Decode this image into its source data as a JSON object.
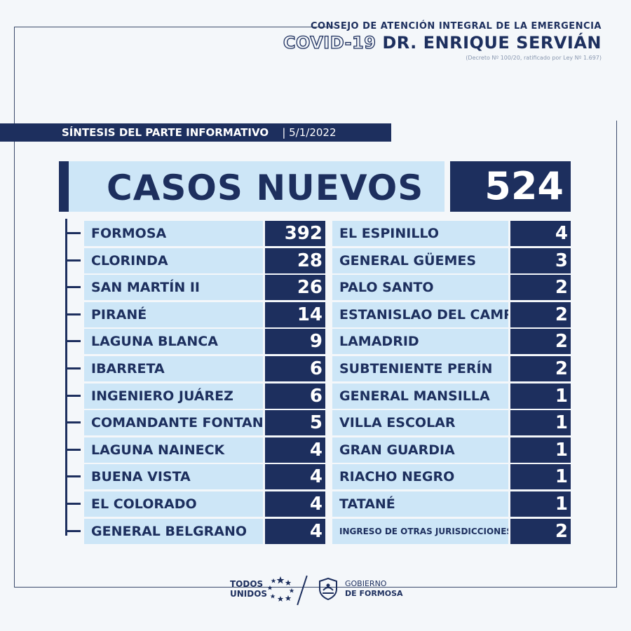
{
  "header": {
    "line1": "CONSEJO DE ATENCIÓN INTEGRAL DE LA EMERGENCIA",
    "covid": "COVID-19",
    "doctor": "DR. ENRIQUE SERVIÁN",
    "decree": "(Decreto Nº 100/20, ratificado por Ley Nº 1.697)"
  },
  "banner": {
    "title": "SÍNTESIS DEL PARTE INFORMATIVO",
    "date": "| 5/1/2022"
  },
  "summary": {
    "label": "CASOS NUEVOS",
    "total": "524"
  },
  "left_rows": [
    {
      "name": "FORMOSA",
      "count": "392"
    },
    {
      "name": "CLORINDA",
      "count": "28"
    },
    {
      "name": "SAN MARTÍN II",
      "count": "26"
    },
    {
      "name": "PIRANÉ",
      "count": "14"
    },
    {
      "name": "LAGUNA BLANCA",
      "count": "9"
    },
    {
      "name": "IBARRETA",
      "count": "6"
    },
    {
      "name": "INGENIERO JUÁREZ",
      "count": "6"
    },
    {
      "name": "COMANDANTE FONTANA",
      "count": "5"
    },
    {
      "name": "LAGUNA NAINECK",
      "count": "4"
    },
    {
      "name": "BUENA VISTA",
      "count": "4"
    },
    {
      "name": "EL COLORADO",
      "count": "4"
    },
    {
      "name": "GENERAL BELGRANO",
      "count": "4"
    }
  ],
  "right_rows": [
    {
      "name": "EL ESPINILLO",
      "count": "4"
    },
    {
      "name": "GENERAL GÜEMES",
      "count": "3"
    },
    {
      "name": "PALO SANTO",
      "count": "2"
    },
    {
      "name": "ESTANISLAO DEL CAMPO",
      "count": "2"
    },
    {
      "name": "LAMADRID",
      "count": "2"
    },
    {
      "name": "SUBTENIENTE PERÍN",
      "count": "2"
    },
    {
      "name": "GENERAL MANSILLA",
      "count": "1"
    },
    {
      "name": "VILLA ESCOLAR",
      "count": "1"
    },
    {
      "name": "GRAN GUARDIA",
      "count": "1"
    },
    {
      "name": "RIACHO NEGRO",
      "count": "1"
    },
    {
      "name": "TATANÉ",
      "count": "1"
    },
    {
      "name": "INGRESO DE OTRAS JURISDICCIONES",
      "count": "2"
    }
  ],
  "footer": {
    "todos_line1": "TODOS",
    "todos_line2": "UNIDOS",
    "gob_line1": "GOBIERNO",
    "gob_line2": "DE FORMOSA"
  },
  "colors": {
    "navy": "#1d2f5e",
    "light_blue": "#cde6f7",
    "background": "#f4f7fa"
  },
  "icons": [
    "stars-icon",
    "shield-icon"
  ]
}
